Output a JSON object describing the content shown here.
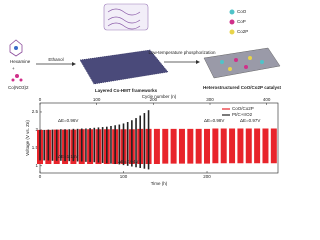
{
  "diagram": {
    "reagents": [
      "Hexamine",
      "Co(NO3)2"
    ],
    "step1": "Ethanol",
    "intermediate": "Layered Co-HMT frameworks",
    "step2": "Low-temperature phosphorization",
    "product": "Heterostructured CoO/Co2P catalyst",
    "legend": [
      {
        "name": "CoO",
        "color": "#4fc3c8"
      },
      {
        "name": "CoP",
        "color": "#d0308a"
      },
      {
        "name": "Co2P",
        "color": "#e8d44a"
      }
    ]
  },
  "chart_data": {
    "type": "line",
    "x_label": "Time (h)",
    "x2_label": "Cycle number (n)",
    "y_label": "Voltage (V vs. Zn)",
    "xlim": [
      0,
      285
    ],
    "xticks": [
      0,
      100,
      200
    ],
    "x2lim": [
      0,
      420
    ],
    "x2ticks": [
      0,
      100,
      200,
      300,
      400
    ],
    "ylim": [
      0.8,
      2.75
    ],
    "yticks": [
      1.0,
      1.5,
      2.0,
      2.5
    ],
    "series": [
      {
        "name": "CoO/Co2P",
        "color": "#e8242b",
        "x": [
          0,
          10,
          20,
          30,
          40,
          50,
          60,
          70,
          80,
          90,
          100,
          110,
          120,
          130,
          140,
          150,
          160,
          170,
          180,
          190,
          200,
          210,
          220,
          230,
          240,
          250,
          260,
          270,
          280
        ],
        "charge": [
          2.0,
          2.0,
          2.01,
          2.01,
          2.01,
          2.02,
          2.02,
          2.02,
          2.02,
          2.02,
          2.02,
          2.02,
          2.03,
          2.03,
          2.03,
          2.03,
          2.03,
          2.03,
          2.03,
          2.03,
          2.03,
          2.04,
          2.04,
          2.04,
          2.04,
          2.04,
          2.04,
          2.04,
          2.04
        ],
        "discharge": [
          1.05,
          1.05,
          1.05,
          1.05,
          1.05,
          1.05,
          1.05,
          1.05,
          1.05,
          1.05,
          1.05,
          1.05,
          1.05,
          1.05,
          1.05,
          1.06,
          1.06,
          1.06,
          1.06,
          1.06,
          1.06,
          1.07,
          1.07,
          1.07,
          1.07,
          1.07,
          1.07,
          1.07,
          1.07
        ]
      },
      {
        "name": "Pt/C+IrO2",
        "color": "#222222",
        "x": [
          0,
          5,
          10,
          15,
          20,
          25,
          30,
          35,
          40,
          45,
          50,
          55,
          60,
          65,
          70,
          75,
          80,
          85,
          90,
          95,
          100,
          105,
          110,
          115,
          120,
          125,
          130
        ],
        "charge": [
          2.0,
          2.0,
          2.01,
          2.01,
          2.01,
          2.02,
          2.02,
          2.02,
          2.03,
          2.03,
          2.04,
          2.04,
          2.05,
          2.06,
          2.07,
          2.08,
          2.09,
          2.11,
          2.13,
          2.15,
          2.18,
          2.22,
          2.27,
          2.33,
          2.4,
          2.47,
          2.55
        ],
        "discharge": [
          1.15,
          1.15,
          1.15,
          1.14,
          1.14,
          1.14,
          1.13,
          1.13,
          1.13,
          1.12,
          1.12,
          1.11,
          1.11,
          1.1,
          1.09,
          1.08,
          1.07,
          1.06,
          1.05,
          1.04,
          1.02,
          1.0,
          0.98,
          0.96,
          0.94,
          0.92,
          0.9
        ]
      }
    ],
    "annotations": [
      {
        "text": "ΔE=0.96V",
        "color": "#e8242b"
      },
      {
        "text": "ΔE=1.15V",
        "color": "#e8242b"
      },
      {
        "text": "ΔE=2.04V",
        "color": "#e8242b"
      },
      {
        "text": "ΔE=0.98V",
        "color": "#e8242b"
      },
      {
        "text": "ΔE=0.97V",
        "color": "#e8242b"
      }
    ]
  }
}
